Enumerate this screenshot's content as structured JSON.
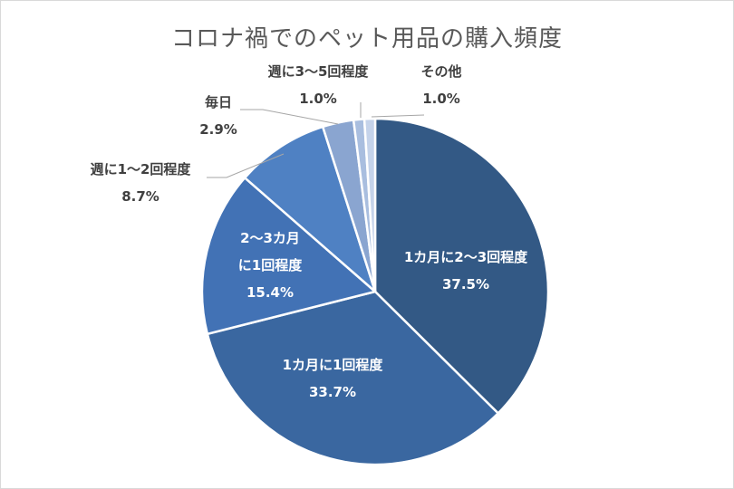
{
  "chart_data": {
    "type": "pie",
    "title": "コロナ禍でのペット用品の購入頻度",
    "slices": [
      {
        "label": "1カ月に2～3回程度",
        "value": 37.5,
        "display": "37.5%",
        "color": "#335985"
      },
      {
        "label": "1カ月に1回程度",
        "value": 33.7,
        "display": "33.7%",
        "color": "#3a67a0"
      },
      {
        "label": "2～3カ月\nに1回程度",
        "value": 15.4,
        "display": "15.4%",
        "color": "#4272b5"
      },
      {
        "label": "週に1～2回程度",
        "value": 8.7,
        "display": "8.7%",
        "color": "#4f81c3"
      },
      {
        "label": "毎日",
        "value": 2.9,
        "display": "2.9%",
        "color": "#8aa5d0"
      },
      {
        "label": "週に3～5回程度",
        "value": 1.0,
        "display": "1.0%",
        "color": "#a9bedf"
      },
      {
        "label": "その他",
        "value": 1.0,
        "display": "1.0%",
        "color": "#c5d3ea"
      }
    ],
    "legend": "none",
    "start_angle": "12 o'clock",
    "direction": "clockwise"
  }
}
